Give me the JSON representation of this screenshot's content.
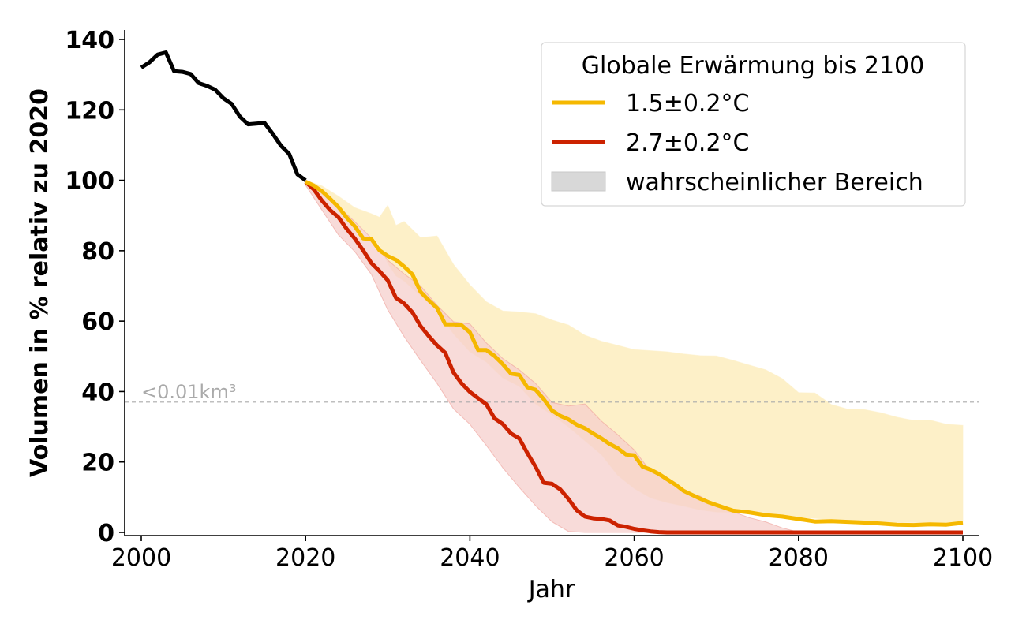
{
  "chart_data": {
    "type": "line",
    "xlabel": "Jahr",
    "ylabel": "Volumen in % relativ zu 2020",
    "xlim": [
      1998,
      2102
    ],
    "ylim": [
      -1,
      143
    ],
    "x_ticks": [
      2000,
      2020,
      2040,
      2060,
      2080,
      2100
    ],
    "y_ticks": [
      0,
      20,
      40,
      60,
      80,
      100,
      120,
      140
    ],
    "grid": false,
    "legend": {
      "title": "Globale Erwärmung bis 2100",
      "placement": "top-right",
      "entries": [
        "1.5±0.2°C",
        "2.7±0.2°C",
        "wahrscheinlicher Bereich"
      ]
    },
    "threshold": {
      "label": "<0.01km³",
      "value": 37
    },
    "colors": {
      "historical": "#000000",
      "low": "#f5b800",
      "low_band": "#fdf0c8",
      "high": "#cc2200",
      "high_band": "#f5cfcc",
      "overlap_band": "#f2c2a0",
      "threshold": "#aaaaaa",
      "legend_patch": "#d8d8d8"
    },
    "series": [
      {
        "x": [
          2000,
          2001,
          2002,
          2003,
          2004,
          2005,
          2006,
          2007,
          2008,
          2009,
          2010,
          2011,
          2012,
          2013,
          2014,
          2015,
          2016,
          2017,
          2018,
          2019,
          2020
        ],
        "values": [
          132,
          133.5,
          135.7,
          136.3,
          131,
          130.8,
          130.2,
          127.6,
          126.8,
          125.7,
          123.3,
          121.7,
          118.1,
          115.9,
          116.1,
          116.3,
          113.2,
          109.8,
          107.5,
          101.7,
          100
        ]
      },
      {
        "name": "1.5±0.2°C",
        "x": [
          2020,
          2021,
          2022,
          2023,
          2024,
          2025,
          2026,
          2027,
          2028,
          2029,
          2030,
          2031,
          2032,
          2033,
          2034,
          2035,
          2036,
          2037,
          2038,
          2039,
          2040,
          2041,
          2042,
          2043,
          2044,
          2045,
          2046,
          2047,
          2048,
          2049,
          2050,
          2051,
          2052,
          2053,
          2054,
          2055,
          2056,
          2057,
          2058,
          2059,
          2060,
          2061,
          2062,
          2063,
          2064,
          2065,
          2066,
          2067,
          2068,
          2069,
          2070,
          2072,
          2074,
          2076,
          2078,
          2080,
          2082,
          2084,
          2086,
          2088,
          2090,
          2092,
          2094,
          2096,
          2098,
          2100
        ],
        "values": [
          99.6,
          98.5,
          96.9,
          94.7,
          92.4,
          89.4,
          86.9,
          83.5,
          83.3,
          80.1,
          78.5,
          77.4,
          75.5,
          73.3,
          68.3,
          65.9,
          63.7,
          59.1,
          59.1,
          58.8,
          56.8,
          51.8,
          51.8,
          50.1,
          47.8,
          45.1,
          44.7,
          41.2,
          40.5,
          37.8,
          34.6,
          33.1,
          32.1,
          30.6,
          29.6,
          28.1,
          26.7,
          25.1,
          23.9,
          22.1,
          21.9,
          18.7,
          17.8,
          16.6,
          15.1,
          13.6,
          11.8,
          10.7,
          9.6,
          8.6,
          7.8,
          6.2,
          5.7,
          4.9,
          4.5,
          3.8,
          3.1,
          3.2,
          3.0,
          2.8,
          2.5,
          2.2,
          2.1,
          2.3,
          2.2,
          2.7
        ]
      },
      {
        "name": "2.7±0.2°C",
        "x": [
          2020,
          2021,
          2022,
          2023,
          2024,
          2025,
          2026,
          2027,
          2028,
          2029,
          2030,
          2031,
          2032,
          2033,
          2034,
          2035,
          2036,
          2037,
          2038,
          2039,
          2040,
          2041,
          2042,
          2043,
          2044,
          2045,
          2046,
          2047,
          2048,
          2049,
          2050,
          2051,
          2052,
          2053,
          2054,
          2055,
          2056,
          2057,
          2058,
          2059,
          2060,
          2061,
          2062,
          2063,
          2064,
          2066,
          2070,
          2080,
          2090,
          2100
        ],
        "values": [
          99.6,
          97.4,
          94.2,
          91.5,
          89.5,
          86.2,
          83.4,
          80.1,
          76.5,
          74.2,
          71.6,
          66.6,
          65,
          62.5,
          58.6,
          55.7,
          53.1,
          51,
          45.4,
          42.3,
          39.9,
          38.1,
          36.4,
          32.4,
          30.8,
          28.1,
          26.7,
          22.5,
          18.6,
          14.1,
          13.8,
          12.2,
          9.5,
          6.3,
          4.5,
          4,
          3.8,
          3.4,
          2,
          1.6,
          1,
          0.6,
          0.3,
          0.1,
          0,
          0,
          0,
          0,
          0,
          0
        ]
      }
    ],
    "bands": [
      {
        "for": "1.5±0.2°C",
        "x": [
          2020,
          2022,
          2024,
          2026,
          2028,
          2029,
          2030,
          2031,
          2032,
          2034,
          2036,
          2038,
          2040,
          2042,
          2044,
          2046,
          2048,
          2050,
          2052,
          2054,
          2056,
          2058,
          2060,
          2062,
          2064,
          2066,
          2068,
          2070,
          2072,
          2074,
          2076,
          2078,
          2080,
          2082,
          2084,
          2086,
          2088,
          2090,
          2092,
          2094,
          2096,
          2098,
          2100
        ],
        "upper": [
          100,
          98.4,
          95.5,
          92.2,
          90.5,
          89.5,
          92.9,
          87.2,
          88.3,
          83.7,
          84.2,
          76.1,
          70.3,
          65.5,
          62.9,
          62.6,
          62.1,
          60.3,
          58.9,
          56,
          54.3,
          53.1,
          51.9,
          51.6,
          51.3,
          50.7,
          50.2,
          50.1,
          48.9,
          47.5,
          46.2,
          43.7,
          39.7,
          39.6,
          36.3,
          35,
          34.9,
          34,
          32.7,
          31.8,
          31.9,
          30.7,
          30.4
        ],
        "lower": [
          99.5,
          96.2,
          91.7,
          88.2,
          83.8,
          81.6,
          76.4,
          72.9,
          71.4,
          67.2,
          63.1,
          56.4,
          51.3,
          48.4,
          43.9,
          41.5,
          36.5,
          33.4,
          30,
          26,
          22.1,
          16.2,
          12.5,
          9.8,
          8.5,
          7.5,
          6.4,
          5.8,
          5.7,
          5.7,
          5.1,
          4.4,
          4.2,
          4,
          3.6,
          3.4,
          3.3,
          3.1,
          2.9,
          2.8,
          2.7,
          2.7,
          2.5
        ]
      },
      {
        "for": "2.7±0.2°C",
        "x": [
          2020,
          2022,
          2024,
          2026,
          2028,
          2030,
          2032,
          2034,
          2036,
          2038,
          2040,
          2042,
          2044,
          2046,
          2048,
          2050,
          2052,
          2054,
          2056,
          2058,
          2060,
          2062,
          2064,
          2066,
          2068,
          2070,
          2072,
          2074,
          2076,
          2078,
          2080
        ],
        "upper": [
          99.9,
          96.3,
          92.6,
          88.2,
          83.6,
          77.3,
          73.4,
          70,
          64.5,
          59.8,
          59.2,
          53.8,
          49.4,
          46.2,
          42.3,
          36.9,
          35.9,
          36.5,
          31.6,
          27.7,
          23.4,
          17.3,
          15,
          11.8,
          10.3,
          7.5,
          5.9,
          4.2,
          3,
          1.3,
          0.1
        ],
        "lower": [
          98.6,
          91.5,
          84.5,
          79.7,
          73.3,
          63.2,
          55.6,
          48.8,
          42.3,
          35.1,
          30.7,
          24.7,
          18.4,
          12.8,
          7.6,
          3,
          0.3,
          0,
          0,
          0,
          0,
          0,
          0,
          0,
          0,
          0,
          0,
          0,
          0,
          0,
          0
        ]
      }
    ]
  }
}
